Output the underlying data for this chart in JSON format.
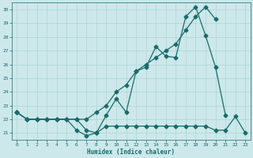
{
  "xlabel": "Humidex (Indice chaleur)",
  "background_color": "#cce8ea",
  "grid_color": "#b0d4d6",
  "line_color": "#1a6b6b",
  "x": [
    0,
    1,
    2,
    3,
    4,
    5,
    6,
    7,
    8,
    9,
    10,
    11,
    12,
    13,
    14,
    15,
    16,
    17,
    18,
    19,
    20,
    21,
    22,
    23
  ],
  "line1": [
    22.5,
    22.0,
    22.0,
    22.0,
    22.0,
    22.0,
    21.2,
    20.8,
    21.0,
    22.3,
    23.5,
    22.5,
    25.5,
    25.8,
    27.3,
    26.6,
    26.5,
    29.5,
    30.2,
    28.1,
    25.8,
    22.3,
    null,
    null
  ],
  "line2": [
    22.5,
    22.0,
    22.0,
    22.0,
    22.0,
    22.0,
    22.0,
    22.0,
    22.5,
    23.0,
    24.0,
    24.5,
    25.5,
    26.0,
    26.5,
    27.0,
    27.5,
    28.5,
    29.5,
    30.2,
    29.3,
    null,
    null,
    null
  ],
  "line3": [
    22.5,
    22.0,
    22.0,
    22.0,
    22.0,
    22.0,
    22.0,
    21.2,
    21.0,
    21.5,
    21.5,
    21.5,
    21.5,
    21.5,
    21.5,
    21.5,
    21.5,
    21.5,
    21.5,
    21.5,
    21.2,
    21.2,
    22.2,
    21.0
  ],
  "ylim": [
    20.5,
    30.5
  ],
  "xlim": [
    -0.5,
    23.5
  ],
  "yticks": [
    21,
    22,
    23,
    24,
    25,
    26,
    27,
    28,
    29,
    30
  ],
  "xticks": [
    0,
    1,
    2,
    3,
    4,
    5,
    6,
    7,
    8,
    9,
    10,
    11,
    12,
    13,
    14,
    15,
    16,
    17,
    18,
    19,
    20,
    21,
    22,
    23
  ]
}
